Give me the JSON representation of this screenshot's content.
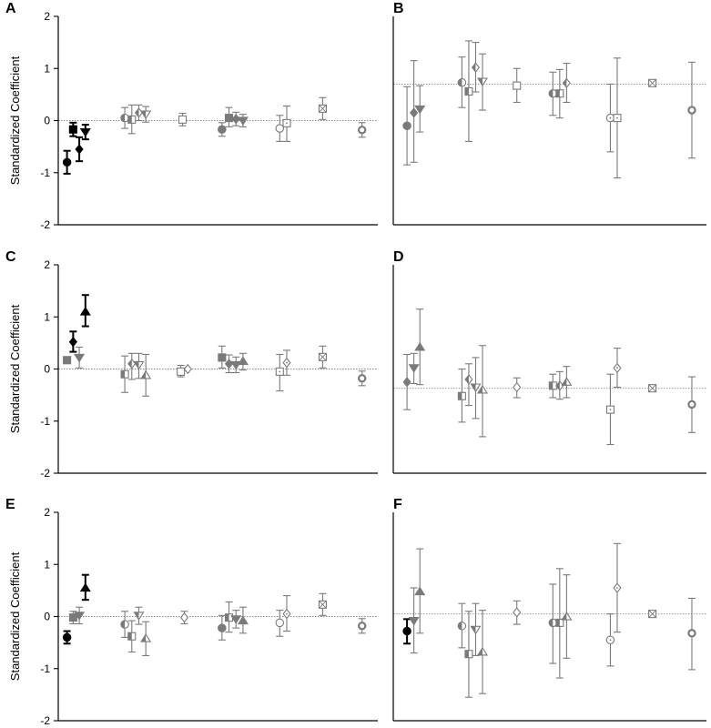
{
  "y_axis_label": "Standardized Coefficient",
  "chart_data": [
    {
      "panel": "A",
      "type": "scatter",
      "error_bars": true,
      "ylim": [
        -2,
        2
      ],
      "yticks": [
        "2",
        "1",
        "0",
        "-1",
        "-2"
      ],
      "ylabel": "Standardized Coefficient",
      "reference_line": 0,
      "points": [
        {
          "x": 1.0,
          "y": -0.8,
          "lo": -1.02,
          "hi": -0.58,
          "marker": "circle-filled",
          "color": "#000000"
        },
        {
          "x": 1.7,
          "y": -0.17,
          "lo": -0.3,
          "hi": -0.04,
          "marker": "square-filled",
          "color": "#000000"
        },
        {
          "x": 2.4,
          "y": -0.55,
          "lo": -0.78,
          "hi": -0.32,
          "marker": "diamond-filled",
          "color": "#000000"
        },
        {
          "x": 3.1,
          "y": -0.22,
          "lo": -0.36,
          "hi": -0.08,
          "marker": "triangle-down-filled",
          "color": "#000000"
        },
        {
          "x": 7.6,
          "y": 0.05,
          "lo": -0.15,
          "hi": 0.25,
          "marker": "circle-half",
          "color": "#7a7a7a"
        },
        {
          "x": 8.4,
          "y": 0.02,
          "lo": -0.25,
          "hi": 0.3,
          "marker": "square-half",
          "color": "#7a7a7a"
        },
        {
          "x": 9.2,
          "y": 0.15,
          "lo": 0.0,
          "hi": 0.3,
          "marker": "diamond-half",
          "color": "#7a7a7a"
        },
        {
          "x": 10.0,
          "y": 0.12,
          "lo": -0.03,
          "hi": 0.27,
          "marker": "triangle-down-half",
          "color": "#7a7a7a"
        },
        {
          "x": 14.2,
          "y": 0.02,
          "lo": -0.1,
          "hi": 0.14,
          "marker": "square-open",
          "color": "#7a7a7a"
        },
        {
          "x": 18.7,
          "y": -0.17,
          "lo": -0.3,
          "hi": -0.04,
          "marker": "circle-filled",
          "color": "#7a7a7a"
        },
        {
          "x": 19.5,
          "y": 0.05,
          "lo": -0.12,
          "hi": 0.25,
          "marker": "square-filled",
          "color": "#7a7a7a"
        },
        {
          "x": 20.3,
          "y": 0.03,
          "lo": -0.1,
          "hi": 0.16,
          "marker": "diamond-filled",
          "color": "#7a7a7a"
        },
        {
          "x": 21.1,
          "y": 0.0,
          "lo": -0.12,
          "hi": 0.12,
          "marker": "triangle-down-filled",
          "color": "#7a7a7a"
        },
        {
          "x": 25.3,
          "y": -0.15,
          "lo": -0.4,
          "hi": 0.1,
          "marker": "circle-open",
          "color": "#7a7a7a"
        },
        {
          "x": 26.1,
          "y": -0.05,
          "lo": -0.4,
          "hi": 0.28,
          "marker": "square-dot",
          "color": "#7a7a7a"
        },
        {
          "x": 30.2,
          "y": 0.23,
          "lo": 0.02,
          "hi": 0.44,
          "marker": "square-x",
          "color": "#7a7a7a"
        },
        {
          "x": 34.7,
          "y": -0.18,
          "lo": -0.32,
          "hi": -0.04,
          "marker": "circle-thick",
          "color": "#7a7a7a"
        }
      ]
    },
    {
      "panel": "B",
      "type": "scatter",
      "error_bars": true,
      "ylim": [
        -2,
        2
      ],
      "reference_line": 0.7,
      "points": [
        {
          "x": 1.6,
          "y": -0.1,
          "lo": -0.85,
          "hi": 0.65,
          "marker": "circle-filled",
          "color": "#7a7a7a"
        },
        {
          "x": 2.4,
          "y": 0.15,
          "lo": -0.8,
          "hi": 1.15,
          "marker": "diamond-filled",
          "color": "#7a7a7a"
        },
        {
          "x": 3.1,
          "y": 0.22,
          "lo": -0.22,
          "hi": 0.67,
          "marker": "triangle-down-filled",
          "color": "#7a7a7a"
        },
        {
          "x": 8.0,
          "y": 0.73,
          "lo": 0.25,
          "hi": 1.22,
          "marker": "circle-half",
          "color": "#7a7a7a"
        },
        {
          "x": 8.8,
          "y": 0.56,
          "lo": -0.4,
          "hi": 1.53,
          "marker": "square-half",
          "color": "#7a7a7a"
        },
        {
          "x": 9.6,
          "y": 1.02,
          "lo": 0.55,
          "hi": 1.5,
          "marker": "diamond-half",
          "color": "#7a7a7a"
        },
        {
          "x": 10.4,
          "y": 0.75,
          "lo": 0.2,
          "hi": 1.28,
          "marker": "triangle-down-half",
          "color": "#7a7a7a"
        },
        {
          "x": 14.4,
          "y": 0.67,
          "lo": 0.35,
          "hi": 1.0,
          "marker": "square-open",
          "color": "#7a7a7a"
        },
        {
          "x": 18.6,
          "y": 0.52,
          "lo": 0.1,
          "hi": 0.93,
          "marker": "circle-half",
          "color": "#7a7a7a"
        },
        {
          "x": 19.4,
          "y": 0.52,
          "lo": 0.05,
          "hi": 0.98,
          "marker": "square-half",
          "color": "#7a7a7a"
        },
        {
          "x": 20.2,
          "y": 0.72,
          "lo": 0.35,
          "hi": 1.1,
          "marker": "diamond-half",
          "color": "#7a7a7a"
        },
        {
          "x": 25.3,
          "y": 0.05,
          "lo": -0.6,
          "hi": 0.7,
          "marker": "circle-dot",
          "color": "#7a7a7a"
        },
        {
          "x": 26.1,
          "y": 0.05,
          "lo": -1.1,
          "hi": 1.2,
          "marker": "square-dot",
          "color": "#7a7a7a"
        },
        {
          "x": 30.2,
          "y": 0.72,
          "lo": 0.72,
          "hi": 0.72,
          "marker": "square-x",
          "color": "#7a7a7a"
        },
        {
          "x": 34.8,
          "y": 0.2,
          "lo": -0.72,
          "hi": 1.12,
          "marker": "circle-thick",
          "color": "#7a7a7a"
        }
      ]
    },
    {
      "panel": "C",
      "type": "scatter",
      "error_bars": true,
      "ylim": [
        -2,
        2
      ],
      "yticks": [
        "2",
        "1",
        "0",
        "-1",
        "-2"
      ],
      "ylabel": "Standardized Coefficient",
      "reference_line": 0,
      "points": [
        {
          "x": 1.0,
          "y": 0.17,
          "lo": 0.17,
          "hi": 0.17,
          "marker": "square-filled",
          "color": "#7a7a7a"
        },
        {
          "x": 1.7,
          "y": 0.52,
          "lo": 0.33,
          "hi": 0.72,
          "marker": "diamond-filled",
          "color": "#000000"
        },
        {
          "x": 2.4,
          "y": 0.22,
          "lo": 0.02,
          "hi": 0.42,
          "marker": "triangle-down-filled",
          "color": "#7a7a7a"
        },
        {
          "x": 3.1,
          "y": 1.1,
          "lo": 0.82,
          "hi": 1.42,
          "marker": "triangle-up-filled",
          "color": "#000000"
        },
        {
          "x": 7.6,
          "y": -0.1,
          "lo": -0.45,
          "hi": 0.25,
          "marker": "square-half",
          "color": "#7a7a7a"
        },
        {
          "x": 8.4,
          "y": 0.1,
          "lo": -0.2,
          "hi": 0.3,
          "marker": "diamond-half",
          "color": "#7a7a7a"
        },
        {
          "x": 9.2,
          "y": 0.08,
          "lo": -0.18,
          "hi": 0.3,
          "marker": "triangle-down-half",
          "color": "#7a7a7a"
        },
        {
          "x": 10.0,
          "y": -0.12,
          "lo": -0.52,
          "hi": 0.28,
          "marker": "triangle-up-half",
          "color": "#7a7a7a"
        },
        {
          "x": 14.0,
          "y": -0.05,
          "lo": -0.15,
          "hi": 0.07,
          "marker": "square-open",
          "color": "#7a7a7a"
        },
        {
          "x": 14.8,
          "y": 0.0,
          "lo": 0.0,
          "hi": 0.0,
          "marker": "diamond-open",
          "color": "#7a7a7a"
        },
        {
          "x": 18.7,
          "y": 0.22,
          "lo": 0.02,
          "hi": 0.44,
          "marker": "square-filled",
          "color": "#7a7a7a"
        },
        {
          "x": 19.5,
          "y": 0.1,
          "lo": -0.07,
          "hi": 0.27,
          "marker": "diamond-filled",
          "color": "#7a7a7a"
        },
        {
          "x": 20.3,
          "y": 0.08,
          "lo": -0.07,
          "hi": 0.23,
          "marker": "triangle-down-filled",
          "color": "#7a7a7a"
        },
        {
          "x": 21.1,
          "y": 0.15,
          "lo": -0.02,
          "hi": 0.3,
          "marker": "triangle-up-filled",
          "color": "#7a7a7a"
        },
        {
          "x": 25.3,
          "y": -0.05,
          "lo": -0.42,
          "hi": 0.28,
          "marker": "square-dot",
          "color": "#7a7a7a"
        },
        {
          "x": 26.1,
          "y": 0.12,
          "lo": -0.12,
          "hi": 0.36,
          "marker": "diamond-dot",
          "color": "#7a7a7a"
        },
        {
          "x": 30.2,
          "y": 0.23,
          "lo": 0.02,
          "hi": 0.44,
          "marker": "square-x",
          "color": "#7a7a7a"
        },
        {
          "x": 34.7,
          "y": -0.18,
          "lo": -0.32,
          "hi": -0.04,
          "marker": "circle-thick",
          "color": "#7a7a7a"
        }
      ]
    },
    {
      "panel": "D",
      "type": "scatter",
      "error_bars": true,
      "ylim": [
        -2,
        2
      ],
      "reference_line": -0.37,
      "points": [
        {
          "x": 1.6,
          "y": -0.25,
          "lo": -0.78,
          "hi": 0.28,
          "marker": "diamond-filled",
          "color": "#7a7a7a"
        },
        {
          "x": 2.4,
          "y": 0.02,
          "lo": -0.28,
          "hi": 0.3,
          "marker": "triangle-down-filled",
          "color": "#7a7a7a"
        },
        {
          "x": 3.1,
          "y": 0.42,
          "lo": -0.3,
          "hi": 1.15,
          "marker": "triangle-up-filled",
          "color": "#7a7a7a"
        },
        {
          "x": 8.0,
          "y": -0.52,
          "lo": -1.02,
          "hi": 0.0,
          "marker": "square-half",
          "color": "#7a7a7a"
        },
        {
          "x": 8.8,
          "y": -0.2,
          "lo": -0.7,
          "hi": 0.1,
          "marker": "diamond-half",
          "color": "#7a7a7a"
        },
        {
          "x": 9.6,
          "y": -0.35,
          "lo": -0.95,
          "hi": 0.22,
          "marker": "triangle-down-half",
          "color": "#7a7a7a"
        },
        {
          "x": 10.4,
          "y": -0.4,
          "lo": -1.3,
          "hi": 0.45,
          "marker": "triangle-up-half",
          "color": "#7a7a7a"
        },
        {
          "x": 14.4,
          "y": -0.35,
          "lo": -0.55,
          "hi": -0.17,
          "marker": "diamond-open",
          "color": "#7a7a7a"
        },
        {
          "x": 18.6,
          "y": -0.32,
          "lo": -0.55,
          "hi": -0.1,
          "marker": "square-half",
          "color": "#7a7a7a"
        },
        {
          "x": 19.4,
          "y": -0.32,
          "lo": -0.58,
          "hi": -0.05,
          "marker": "diamond-half",
          "color": "#7a7a7a"
        },
        {
          "x": 20.2,
          "y": -0.25,
          "lo": -0.55,
          "hi": 0.05,
          "marker": "triangle-up-half",
          "color": "#7a7a7a"
        },
        {
          "x": 25.3,
          "y": -0.78,
          "lo": -1.45,
          "hi": -0.1,
          "marker": "square-dot",
          "color": "#7a7a7a"
        },
        {
          "x": 26.1,
          "y": 0.02,
          "lo": -0.35,
          "hi": 0.4,
          "marker": "diamond-dot",
          "color": "#7a7a7a"
        },
        {
          "x": 30.2,
          "y": -0.37,
          "lo": -0.37,
          "hi": -0.37,
          "marker": "square-x",
          "color": "#7a7a7a"
        },
        {
          "x": 34.8,
          "y": -0.68,
          "lo": -1.22,
          "hi": -0.15,
          "marker": "circle-thick",
          "color": "#7a7a7a"
        }
      ]
    },
    {
      "panel": "E",
      "type": "scatter",
      "error_bars": true,
      "ylim": [
        -2,
        2
      ],
      "yticks": [
        "2",
        "1",
        "0",
        "-1",
        "-2"
      ],
      "ylabel": "Standardized Coefficient",
      "reference_line": 0,
      "points": [
        {
          "x": 1.0,
          "y": -0.4,
          "lo": -0.52,
          "hi": -0.28,
          "marker": "circle-filled",
          "color": "#000000"
        },
        {
          "x": 1.7,
          "y": -0.02,
          "lo": -0.14,
          "hi": 0.1,
          "marker": "square-filled",
          "color": "#7a7a7a"
        },
        {
          "x": 2.4,
          "y": 0.02,
          "lo": -0.14,
          "hi": 0.18,
          "marker": "triangle-down-filled",
          "color": "#7a7a7a"
        },
        {
          "x": 3.1,
          "y": 0.55,
          "lo": 0.32,
          "hi": 0.8,
          "marker": "triangle-up-filled",
          "color": "#000000"
        },
        {
          "x": 7.6,
          "y": -0.15,
          "lo": -0.4,
          "hi": 0.1,
          "marker": "circle-half",
          "color": "#7a7a7a"
        },
        {
          "x": 8.4,
          "y": -0.38,
          "lo": -0.68,
          "hi": -0.08,
          "marker": "square-half",
          "color": "#7a7a7a"
        },
        {
          "x": 9.2,
          "y": 0.02,
          "lo": -0.15,
          "hi": 0.18,
          "marker": "triangle-down-half",
          "color": "#7a7a7a"
        },
        {
          "x": 10.0,
          "y": -0.42,
          "lo": -0.75,
          "hi": -0.1,
          "marker": "triangle-up-half",
          "color": "#7a7a7a"
        },
        {
          "x": 14.4,
          "y": -0.02,
          "lo": -0.14,
          "hi": 0.1,
          "marker": "diamond-open",
          "color": "#7a7a7a"
        },
        {
          "x": 18.7,
          "y": -0.22,
          "lo": -0.45,
          "hi": 0.02,
          "marker": "circle-filled",
          "color": "#7a7a7a"
        },
        {
          "x": 19.5,
          "y": -0.02,
          "lo": -0.3,
          "hi": 0.28,
          "marker": "square-half",
          "color": "#7a7a7a"
        },
        {
          "x": 20.3,
          "y": -0.05,
          "lo": -0.22,
          "hi": 0.12,
          "marker": "triangle-down-filled",
          "color": "#7a7a7a"
        },
        {
          "x": 21.1,
          "y": -0.08,
          "lo": -0.32,
          "hi": 0.18,
          "marker": "triangle-up-filled",
          "color": "#7a7a7a"
        },
        {
          "x": 25.3,
          "y": -0.12,
          "lo": -0.38,
          "hi": 0.12,
          "marker": "circle-open",
          "color": "#7a7a7a"
        },
        {
          "x": 26.1,
          "y": 0.05,
          "lo": -0.28,
          "hi": 0.4,
          "marker": "diamond-dot",
          "color": "#7a7a7a"
        },
        {
          "x": 30.2,
          "y": 0.23,
          "lo": 0.02,
          "hi": 0.44,
          "marker": "square-x",
          "color": "#7a7a7a"
        },
        {
          "x": 34.7,
          "y": -0.18,
          "lo": -0.32,
          "hi": -0.04,
          "marker": "circle-thick",
          "color": "#7a7a7a"
        }
      ]
    },
    {
      "panel": "F",
      "type": "scatter",
      "error_bars": true,
      "ylim": [
        -2,
        2
      ],
      "reference_line": 0.05,
      "points": [
        {
          "x": 1.6,
          "y": -0.28,
          "lo": -0.52,
          "hi": -0.05,
          "marker": "circle-filled",
          "color": "#000000"
        },
        {
          "x": 2.4,
          "y": -0.08,
          "lo": -0.7,
          "hi": 0.55,
          "marker": "triangle-down-filled",
          "color": "#7a7a7a"
        },
        {
          "x": 3.1,
          "y": 0.48,
          "lo": -0.32,
          "hi": 1.3,
          "marker": "triangle-up-filled",
          "color": "#7a7a7a"
        },
        {
          "x": 8.0,
          "y": -0.18,
          "lo": -0.6,
          "hi": 0.25,
          "marker": "circle-half",
          "color": "#7a7a7a"
        },
        {
          "x": 8.8,
          "y": -0.72,
          "lo": -1.55,
          "hi": 0.1,
          "marker": "square-half",
          "color": "#7a7a7a"
        },
        {
          "x": 9.6,
          "y": -0.25,
          "lo": -0.75,
          "hi": 0.25,
          "marker": "triangle-down-half",
          "color": "#7a7a7a"
        },
        {
          "x": 10.4,
          "y": -0.68,
          "lo": -1.48,
          "hi": 0.12,
          "marker": "triangle-up-half",
          "color": "#7a7a7a"
        },
        {
          "x": 14.4,
          "y": 0.08,
          "lo": -0.15,
          "hi": 0.3,
          "marker": "diamond-open",
          "color": "#7a7a7a"
        },
        {
          "x": 18.6,
          "y": -0.12,
          "lo": -0.9,
          "hi": 0.62,
          "marker": "circle-half",
          "color": "#7a7a7a"
        },
        {
          "x": 19.4,
          "y": -0.12,
          "lo": -1.18,
          "hi": 0.92,
          "marker": "square-half",
          "color": "#7a7a7a"
        },
        {
          "x": 20.2,
          "y": 0.0,
          "lo": -0.8,
          "hi": 0.8,
          "marker": "triangle-up-half",
          "color": "#7a7a7a"
        },
        {
          "x": 25.3,
          "y": -0.45,
          "lo": -0.95,
          "hi": 0.05,
          "marker": "circle-dot",
          "color": "#7a7a7a"
        },
        {
          "x": 26.1,
          "y": 0.55,
          "lo": -0.3,
          "hi": 1.4,
          "marker": "diamond-dot",
          "color": "#7a7a7a"
        },
        {
          "x": 30.2,
          "y": 0.05,
          "lo": 0.05,
          "hi": 0.05,
          "marker": "square-x",
          "color": "#7a7a7a"
        },
        {
          "x": 34.8,
          "y": -0.32,
          "lo": -1.02,
          "hi": 0.35,
          "marker": "circle-thick",
          "color": "#7a7a7a"
        }
      ]
    }
  ]
}
